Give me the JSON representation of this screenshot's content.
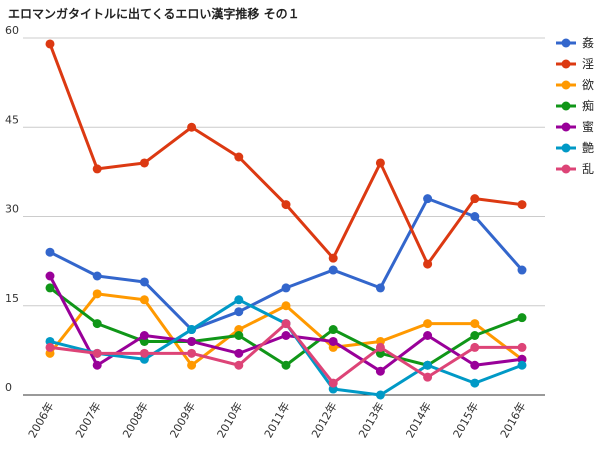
{
  "chart_data": {
    "type": "line",
    "title": "エロマンガタイトルに出てくるエロい漢字推移 その１",
    "xlabel": "",
    "ylabel": "",
    "ylim": [
      0,
      60
    ],
    "yticks": [
      "0",
      "15",
      "30",
      "45",
      "60"
    ],
    "grid": true,
    "legend_position": "right",
    "categories": [
      "2006年",
      "2007年",
      "2008年",
      "2009年",
      "2010年",
      "2011年",
      "2012年",
      "2013年",
      "2014年",
      "2015年",
      "2016年"
    ],
    "series": [
      {
        "name": "姦",
        "color": "#3366cc",
        "values": [
          24,
          20,
          19,
          11,
          14,
          18,
          21,
          18,
          33,
          30,
          21
        ]
      },
      {
        "name": "淫",
        "color": "#dc3912",
        "values": [
          59,
          38,
          39,
          45,
          40,
          32,
          23,
          39,
          22,
          33,
          32
        ]
      },
      {
        "name": "欲",
        "color": "#ff9900",
        "values": [
          7,
          17,
          16,
          5,
          11,
          15,
          8,
          9,
          12,
          12,
          6
        ]
      },
      {
        "name": "痴",
        "color": "#109618",
        "values": [
          18,
          12,
          9,
          9,
          10,
          5,
          11,
          7,
          5,
          10,
          13
        ]
      },
      {
        "name": "蜜",
        "color": "#990099",
        "values": [
          20,
          5,
          10,
          9,
          7,
          10,
          9,
          4,
          10,
          5,
          6
        ]
      },
      {
        "name": "艶",
        "color": "#0099c6",
        "values": [
          9,
          7,
          6,
          11,
          16,
          12,
          1,
          0,
          5,
          2,
          5
        ]
      },
      {
        "name": "乱",
        "color": "#dd4477",
        "values": [
          8,
          7,
          7,
          7,
          5,
          12,
          2,
          8,
          3,
          8,
          8
        ]
      }
    ]
  }
}
